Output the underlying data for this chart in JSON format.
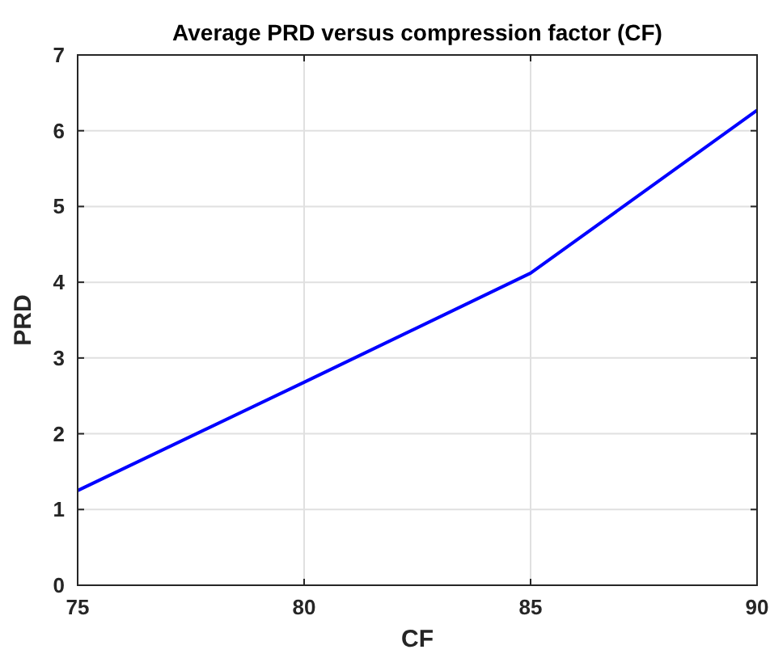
{
  "chart_data": {
    "type": "line",
    "title": "Average PRD versus compression factor (CF)",
    "xlabel": "CF",
    "ylabel": "PRD",
    "x": [
      75,
      80,
      85,
      90
    ],
    "series": [
      {
        "color": "#0000ff",
        "values": [
          1.25,
          2.68,
          4.12,
          6.27
        ]
      }
    ],
    "xlim": [
      75,
      90
    ],
    "xticks": [
      75,
      80,
      85,
      90
    ],
    "ylim": [
      0,
      7
    ],
    "yticks": [
      0,
      1,
      2,
      3,
      4,
      5,
      6,
      7
    ],
    "grid": true,
    "marker": "none",
    "line_style": "solid"
  }
}
